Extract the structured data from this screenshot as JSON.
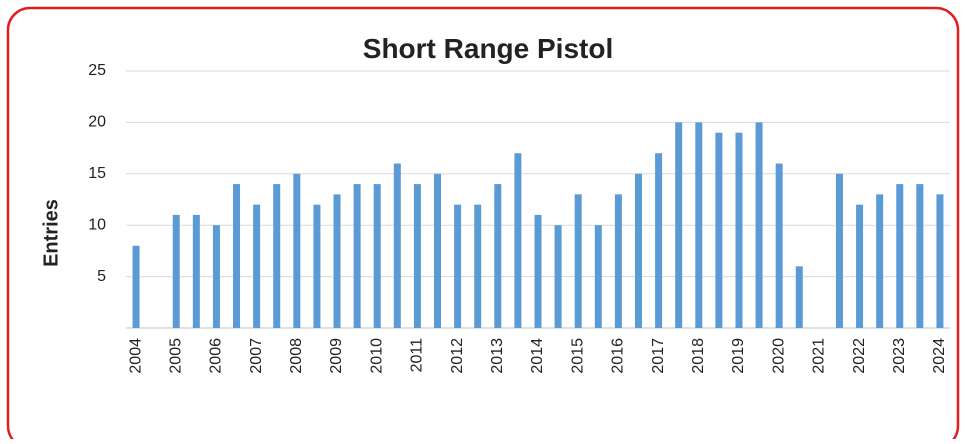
{
  "chart_data": {
    "type": "bar",
    "title": "Short Range Pistol",
    "y_label": "Entries",
    "categories": [
      "2004",
      null,
      "2005",
      null,
      "2006",
      null,
      "2007",
      null,
      "2008",
      null,
      "2009",
      null,
      "2010",
      null,
      "2011",
      null,
      "2012",
      null,
      "2013",
      null,
      "2014",
      null,
      "2015",
      null,
      "2016",
      null,
      "2017",
      null,
      "2018",
      null,
      "2019",
      null,
      "2020",
      null,
      "2021",
      null,
      "2022",
      null,
      "2023",
      null,
      "2024"
    ],
    "values": [
      8,
      0,
      11,
      11,
      10,
      14,
      12,
      14,
      15,
      12,
      13,
      14,
      14,
      16,
      14,
      15,
      12,
      12,
      14,
      17,
      11,
      10,
      13,
      10,
      13,
      15,
      17,
      20,
      20,
      19,
      19,
      20,
      16,
      6,
      0,
      15,
      12,
      13,
      14,
      14,
      13
    ],
    "color": "#5b9bd5",
    "ylim": [
      0,
      25
    ],
    "yticks": [
      5,
      10,
      15,
      20,
      25
    ],
    "grid": true
  }
}
